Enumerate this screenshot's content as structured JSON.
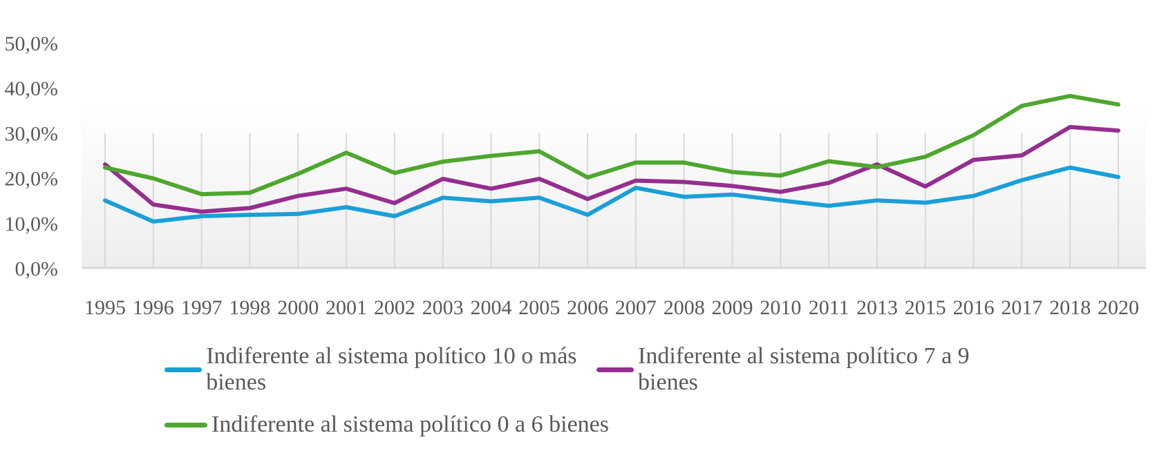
{
  "chart_data": {
    "type": "line",
    "categories": [
      "1995",
      "1996",
      "1997",
      "1998",
      "2000",
      "2001",
      "2002",
      "2003",
      "2004",
      "2005",
      "2006",
      "2007",
      "2008",
      "2009",
      "2010",
      "2011",
      "2013",
      "2015",
      "2016",
      "2017",
      "2018",
      "2020"
    ],
    "y_tick_labels": [
      "0,0%",
      "10,0%",
      "20,0%",
      "30,0%",
      "40,0%",
      "50,0%"
    ],
    "ylim": [
      0,
      50
    ],
    "grid": "vertical",
    "legend_position": "bottom",
    "series": [
      {
        "name": "Indiferente al sistema político 10 o más bienes",
        "color": "#1a9fd8",
        "values": [
          15.0,
          10.3,
          11.5,
          11.8,
          12.0,
          13.5,
          11.5,
          15.6,
          14.8,
          15.6,
          11.8,
          17.8,
          15.8,
          16.3,
          15.0,
          13.8,
          15.0,
          14.5,
          16.0,
          19.5,
          22.3,
          20.2
        ]
      },
      {
        "name": "Indiferente al sistema político 7 a 9 bienes",
        "color": "#952e8f",
        "values": [
          23.0,
          14.1,
          12.5,
          13.3,
          16.0,
          17.6,
          14.4,
          19.8,
          17.6,
          19.8,
          15.3,
          19.4,
          19.1,
          18.2,
          16.9,
          18.9,
          23.0,
          18.1,
          24.0,
          25.0,
          31.3,
          30.5
        ]
      },
      {
        "name": "Indiferente al sistema político 0 a 6 bienes",
        "color": "#4ea72e",
        "values": [
          22.3,
          19.9,
          16.4,
          16.7,
          20.9,
          25.6,
          21.1,
          23.6,
          24.9,
          25.9,
          20.1,
          23.4,
          23.4,
          21.3,
          20.5,
          23.7,
          22.4,
          24.7,
          29.5,
          36.0,
          38.2,
          36.3
        ]
      }
    ]
  }
}
